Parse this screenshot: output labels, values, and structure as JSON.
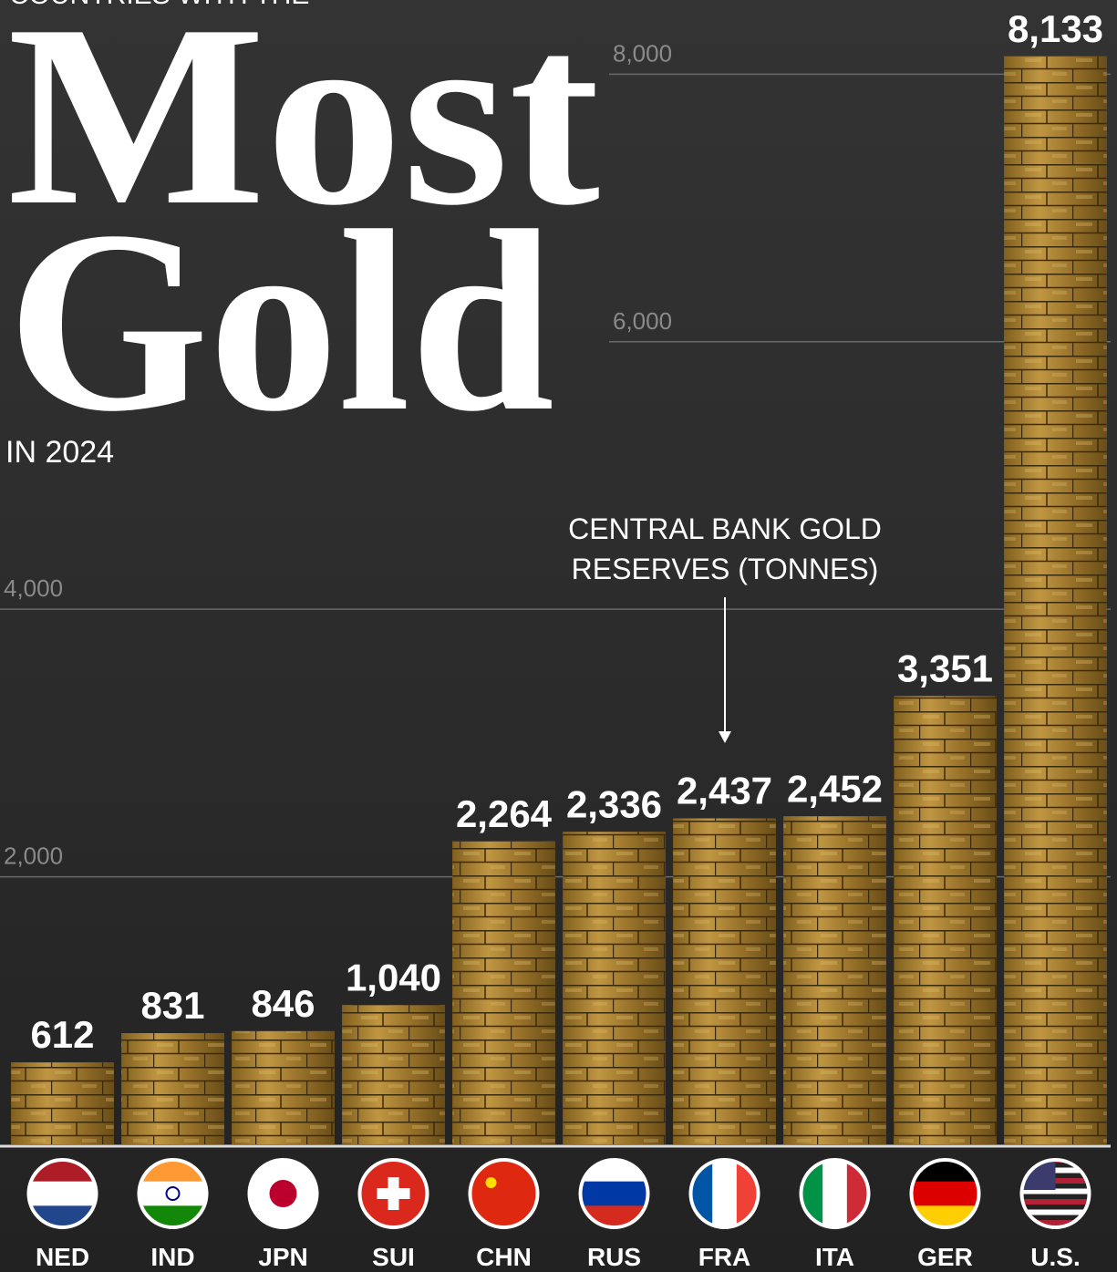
{
  "chart_data": {
    "type": "bar",
    "kicker": "COUNTRIES WITH THE",
    "title_line1": "Most",
    "title_line2": "Gold",
    "subtitle": "IN 2024",
    "annotation_line1": "CENTRAL BANK GOLD",
    "annotation_line2": "RESERVES (TONNES)",
    "categories": [
      "NED",
      "IND",
      "JPN",
      "SUI",
      "CHN",
      "RUS",
      "FRA",
      "ITA",
      "GER",
      "U.S."
    ],
    "values": [
      612,
      831,
      846,
      1040,
      2264,
      2336,
      2437,
      2452,
      3351,
      8133
    ],
    "value_labels": [
      "612",
      "831",
      "846",
      "1,040",
      "2,264",
      "2,336",
      "2,437",
      "2,452",
      "3,351",
      "8,133"
    ],
    "color": "#a8802e",
    "ylim": [
      0,
      8500
    ],
    "yticks": [
      {
        "value": 2000,
        "label": "2,000"
      },
      {
        "value": 4000,
        "label": "4,000"
      },
      {
        "value": 6000,
        "label": "6,000"
      },
      {
        "value": 8000,
        "label": "8,000"
      }
    ],
    "grid": true
  }
}
